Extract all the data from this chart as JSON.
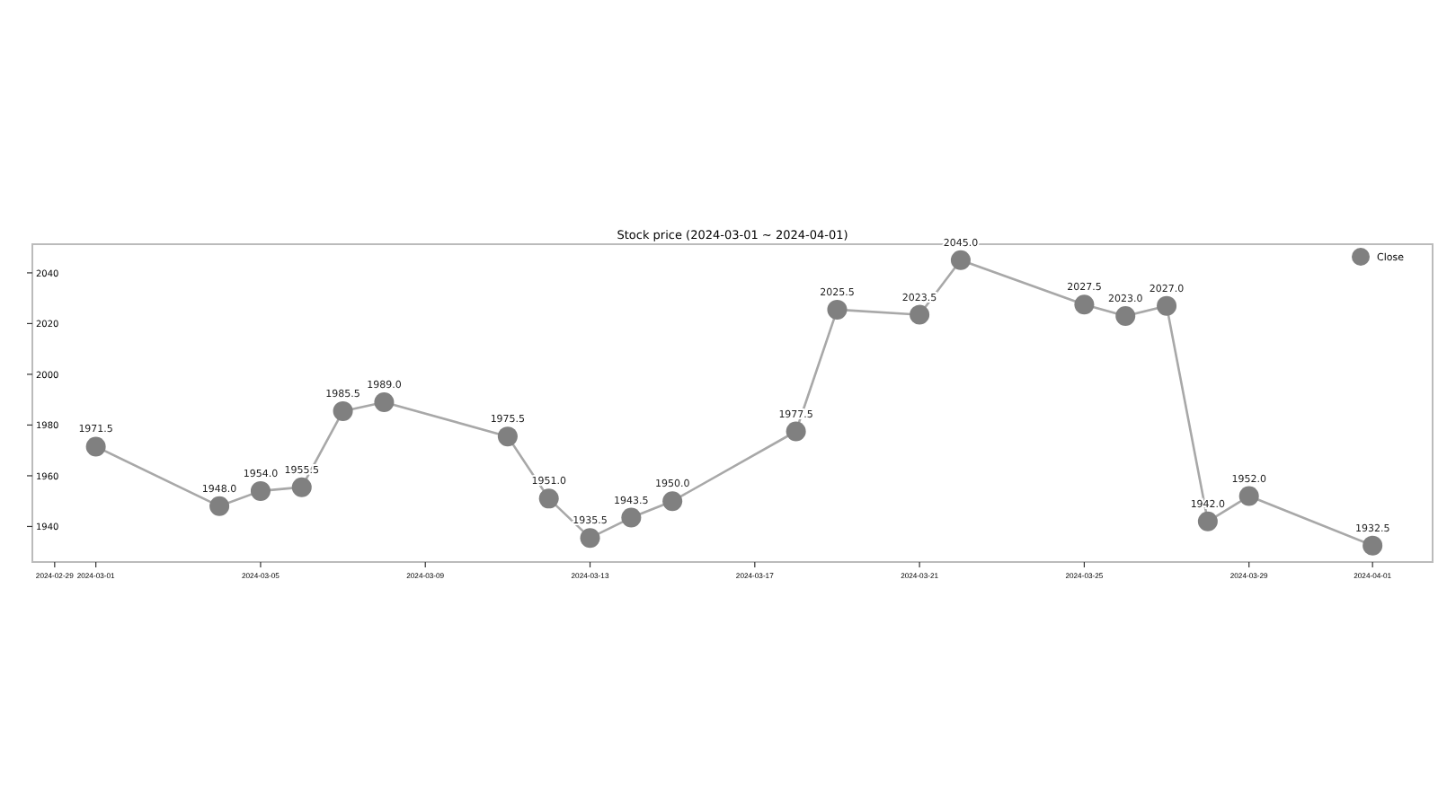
{
  "chart_data": {
    "type": "line",
    "title": "Stock price (2024-03-01 ~ 2024-04-01)",
    "x": [
      "2024-03-01",
      "2024-03-04",
      "2024-03-05",
      "2024-03-06",
      "2024-03-07",
      "2024-03-08",
      "2024-03-11",
      "2024-03-12",
      "2024-03-13",
      "2024-03-14",
      "2024-03-15",
      "2024-03-18",
      "2024-03-19",
      "2024-03-21",
      "2024-03-22",
      "2024-03-25",
      "2024-03-26",
      "2024-03-27",
      "2024-03-28",
      "2024-03-29",
      "2024-04-01"
    ],
    "series": [
      {
        "name": "Close",
        "color": "#808080",
        "values": [
          1971.5,
          1948.0,
          1954.0,
          1955.5,
          1985.5,
          1989.0,
          1975.5,
          1951.0,
          1935.5,
          1943.5,
          1950.0,
          1977.5,
          2025.5,
          2023.5,
          2045.0,
          2027.5,
          2023.0,
          2027.0,
          1942.0,
          1952.0,
          1932.5
        ],
        "value_labels": [
          "1971.5",
          "1948.0",
          "1954.0",
          "1955.5",
          "1985.5",
          "1989.0",
          "1975.5",
          "1951.0",
          "1935.5",
          "1943.5",
          "1950.0",
          "1977.5",
          "2025.5",
          "2023.5",
          "2045.0",
          "2027.5",
          "2023.0",
          "2027.0",
          "1942.0",
          "1952.0",
          "1932.5"
        ]
      }
    ],
    "xlim": [
      "2024-02-28T11:00",
      "2024-04-02T11:00"
    ],
    "xticks": [
      {
        "value": "2024-02-29",
        "label": "2024-02-29"
      },
      {
        "value": "2024-03-01",
        "label": "2024-03-01"
      },
      {
        "value": "2024-03-05",
        "label": "2024-03-05"
      },
      {
        "value": "2024-03-09",
        "label": "2024-03-09"
      },
      {
        "value": "2024-03-13",
        "label": "2024-03-13"
      },
      {
        "value": "2024-03-17",
        "label": "2024-03-17"
      },
      {
        "value": "2024-03-21",
        "label": "2024-03-21"
      },
      {
        "value": "2024-03-25",
        "label": "2024-03-25"
      },
      {
        "value": "2024-03-29",
        "label": "2024-03-29"
      },
      {
        "value": "2024-04-01",
        "label": "2024-04-01"
      }
    ],
    "ylim": [
      1926,
      2051.3
    ],
    "yticks": [
      1940,
      1960,
      1980,
      2000,
      2020,
      2040
    ],
    "marker": "circle",
    "line_style": "solid",
    "legend": "top right",
    "grid": false
  }
}
